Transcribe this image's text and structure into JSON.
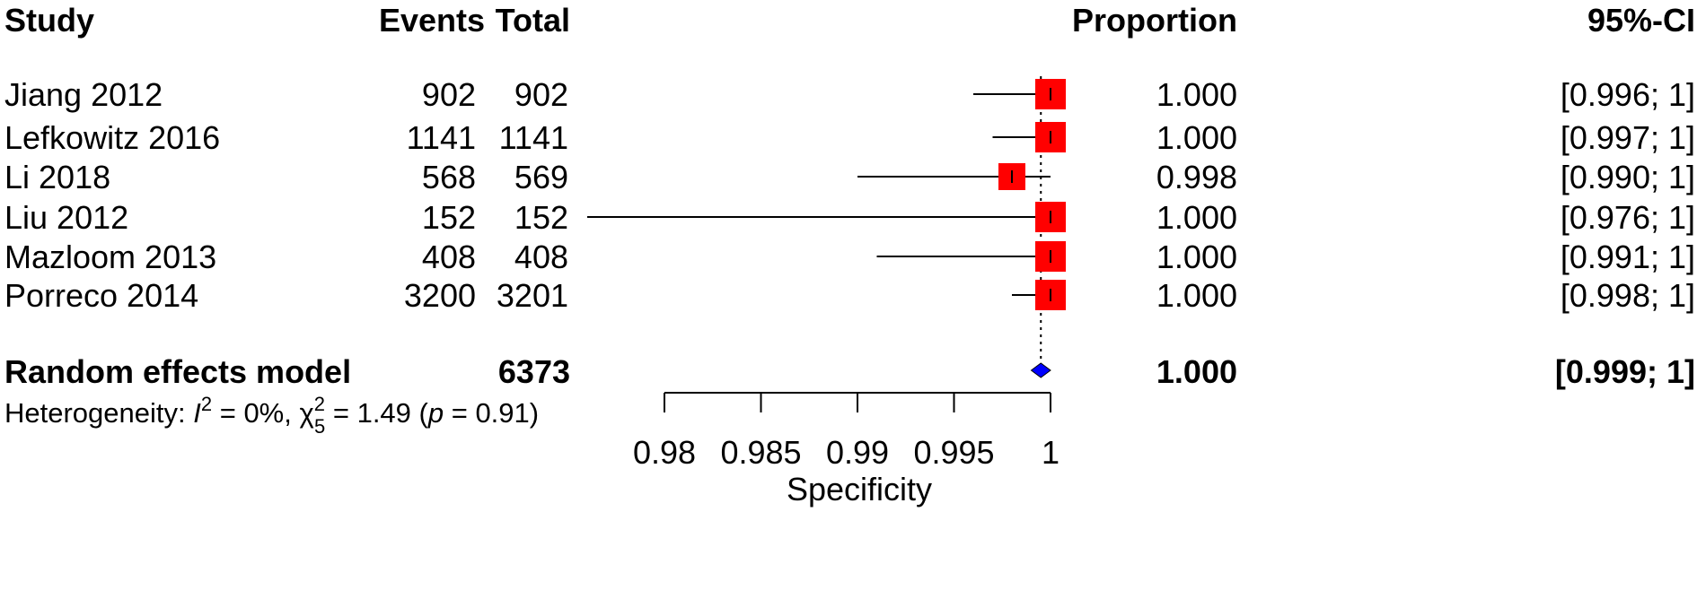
{
  "chart_data": {
    "type": "forest",
    "headers": {
      "study": "Study",
      "events": "Events",
      "total": "Total",
      "proportion": "Proportion",
      "ci": "95%-CI"
    },
    "studies": [
      {
        "name": "Jiang 2012",
        "events": "902",
        "total": "902",
        "proportion": 1.0,
        "lower": 0.996,
        "upper": 1.0,
        "proportion_label": "1.000",
        "ci_label": "[0.996;  1]"
      },
      {
        "name": "Lefkowitz 2016",
        "events": "1141",
        "total": "1141",
        "proportion": 1.0,
        "lower": 0.997,
        "upper": 1.0,
        "proportion_label": "1.000",
        "ci_label": "[0.997;  1]"
      },
      {
        "name": "Li 2018",
        "events": "568",
        "total": "569",
        "proportion": 0.998,
        "lower": 0.99,
        "upper": 1.0,
        "proportion_label": "0.998",
        "ci_label": "[0.990;  1]"
      },
      {
        "name": "Liu 2012",
        "events": "152",
        "total": "152",
        "proportion": 1.0,
        "lower": 0.976,
        "upper": 1.0,
        "proportion_label": "1.000",
        "ci_label": "[0.976;  1]"
      },
      {
        "name": "Mazloom 2013",
        "events": "408",
        "total": "408",
        "proportion": 1.0,
        "lower": 0.991,
        "upper": 1.0,
        "proportion_label": "1.000",
        "ci_label": "[0.991;  1]"
      },
      {
        "name": "Porreco 2014",
        "events": "3200",
        "total": "3201",
        "proportion": 1.0,
        "lower": 0.998,
        "upper": 1.0,
        "proportion_label": "1.000",
        "ci_label": "[0.998;  1]"
      }
    ],
    "pooled": {
      "name": "Random effects model",
      "total": "6373",
      "proportion": 0.9995,
      "lower": 0.999,
      "upper": 1.0,
      "proportion_label": "1.000",
      "ci_label": "[0.999;  1]"
    },
    "heterogeneity": {
      "prefix": "Heterogeneity: ",
      "i2_symbol": "I",
      "i2_sup": "2",
      "i2_value": " = 0%, ",
      "chi_symbol": "χ",
      "chi_sup": "2",
      "chi_sub": "5",
      "chi_value": " = 1.49 (",
      "p_symbol": "p",
      "p_value": " = 0.91)"
    },
    "xaxis": {
      "label": "Specificity",
      "range": [
        0.98,
        1.0
      ],
      "ticks": [
        0.98,
        0.985,
        0.99,
        0.995,
        1.0
      ],
      "tick_labels": [
        "0.98",
        "0.985",
        "0.99",
        "0.995",
        "1"
      ]
    },
    "reference_line": 0.9995,
    "colors": {
      "study_box": "#ff0000",
      "pooled_diamond": "#0000ff",
      "lines": "#000000"
    }
  }
}
